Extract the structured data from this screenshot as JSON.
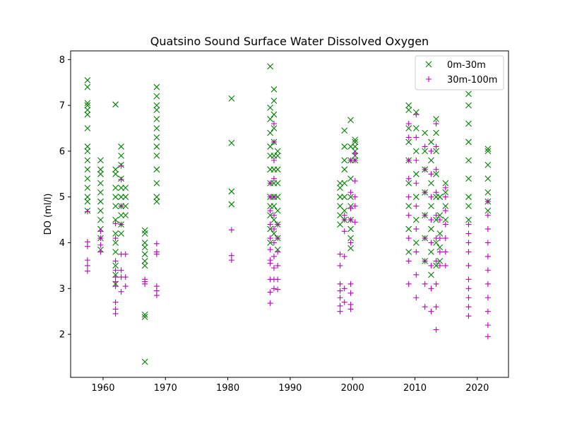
{
  "chart_data": {
    "type": "scatter",
    "title": "Quatsino Sound Surface Water Dissolved Oxygen",
    "xlabel": "",
    "ylabel": "DO (ml/l)",
    "xlim": [
      1954.8,
      2025.0
    ],
    "ylim": [
      1.06,
      8.19
    ],
    "xticks": [
      1960,
      1970,
      1980,
      1990,
      2000,
      2010,
      2020
    ],
    "yticks": [
      2,
      3,
      4,
      5,
      6,
      7,
      8
    ],
    "grid": false,
    "legend_position": "top-right",
    "series": [
      {
        "name": "0m-30m",
        "marker": "x",
        "color": "#008000",
        "columns": [
          {
            "x": 1957.5,
            "y": [
              4.7,
              4.9,
              5.0,
              5.2,
              5.4,
              5.6,
              5.8,
              6.0,
              6.1,
              6.5,
              6.8,
              6.9,
              7.0,
              7.05,
              7.4,
              7.55
            ]
          },
          {
            "x": 1959.6,
            "y": [
              3.85,
              4.1,
              4.3,
              4.5,
              4.7,
              4.9,
              5.1,
              5.3,
              5.5,
              5.6,
              5.8
            ]
          },
          {
            "x": 1962.0,
            "y": [
              3.1,
              3.3,
              3.5,
              3.8,
              4.0,
              4.2,
              4.5,
              4.8,
              5.0,
              5.2,
              5.5,
              5.6,
              7.02
            ]
          },
          {
            "x": 1962.9,
            "y": [
              4.2,
              4.4,
              4.6,
              4.8,
              5.0,
              5.2,
              5.4,
              5.7,
              5.9,
              6.1
            ]
          },
          {
            "x": 1963.6,
            "y": [
              4.6,
              4.8,
              5.0,
              5.2
            ]
          },
          {
            "x": 1966.7,
            "y": [
              1.4,
              2.38,
              2.43,
              3.5,
              3.6,
              3.75,
              3.9,
              4.0,
              4.2,
              4.27
            ]
          },
          {
            "x": 1968.6,
            "y": [
              4.9,
              5.0,
              5.3,
              5.6,
              5.9,
              6.1,
              6.3,
              6.5,
              6.7,
              6.9,
              7.0,
              7.2,
              7.4
            ]
          },
          {
            "x": 1980.6,
            "y": [
              4.84,
              5.12,
              6.18,
              7.15
            ]
          },
          {
            "x": 1986.8,
            "y": [
              4.0,
              4.3,
              4.6,
              4.8,
              5.0,
              5.3,
              5.6,
              5.9,
              6.1,
              6.4,
              6.7,
              6.95,
              7.85
            ]
          },
          {
            "x": 1987.4,
            "y": [
              4.2,
              4.5,
              4.8,
              5.0,
              5.3,
              5.6,
              5.9,
              6.2,
              6.5,
              6.8,
              7.1,
              7.35
            ]
          },
          {
            "x": 1988.0,
            "y": [
              3.85,
              4.1,
              4.4,
              4.7,
              5.0,
              5.3,
              5.6,
              5.9,
              6.0
            ]
          },
          {
            "x": 1998.0,
            "y": [
              4.4,
              4.6,
              4.8,
              5.0,
              5.2,
              5.3
            ]
          },
          {
            "x": 1998.7,
            "y": [
              4.5,
              4.7,
              5.0,
              5.3,
              5.6,
              5.8,
              6.1,
              6.45
            ]
          },
          {
            "x": 1999.7,
            "y": [
              3.88,
              4.1,
              4.3,
              4.5,
              4.8,
              5.0,
              5.4,
              5.8,
              6.1,
              6.68
            ]
          },
          {
            "x": 2000.4,
            "y": [
              5.8,
              5.9,
              6.0,
              6.1,
              6.2,
              6.25
            ]
          },
          {
            "x": 2009.0,
            "y": [
              3.8,
              4.3,
              4.8,
              5.3,
              5.8,
              6.2,
              6.5,
              6.9,
              7.0
            ]
          },
          {
            "x": 2010.2,
            "y": [
              4.0,
              4.5,
              5.0,
              5.5,
              6.0,
              6.5,
              6.85
            ]
          },
          {
            "x": 2011.6,
            "y": [
              3.6,
              4.1,
              4.6,
              5.1,
              5.6,
              6.0,
              6.4
            ]
          },
          {
            "x": 2012.6,
            "y": [
              3.3,
              3.8,
              4.3,
              4.8,
              5.3,
              5.8,
              6.2
            ]
          },
          {
            "x": 2013.4,
            "y": [
              3.5,
              4.0,
              4.5,
              5.0,
              5.5,
              6.0,
              6.4,
              6.7
            ]
          },
          {
            "x": 2014.0,
            "y": [
              3.6,
              3.9,
              4.2,
              4.6,
              5.0
            ]
          },
          {
            "x": 2014.9,
            "y": [
              4.5,
              4.8,
              5.1,
              5.3
            ]
          },
          {
            "x": 2018.6,
            "y": [
              4.5,
              4.8,
              5.0,
              5.4,
              5.8,
              6.2,
              6.6,
              7.0,
              7.25
            ]
          },
          {
            "x": 2021.7,
            "y": [
              4.7,
              4.9,
              5.1,
              5.4,
              5.7,
              6.0,
              6.05
            ]
          }
        ]
      },
      {
        "name": "30m-100m",
        "marker": "+",
        "color": "#bf00bf",
        "columns": [
          {
            "x": 1957.5,
            "y": [
              3.38,
              3.5,
              3.62,
              3.92,
              4.02,
              4.68
            ]
          },
          {
            "x": 1959.6,
            "y": [
              3.8,
              3.95,
              4.1,
              4.25
            ]
          },
          {
            "x": 1962.0,
            "y": [
              2.45,
              2.55,
              2.7,
              3.05,
              3.15,
              3.25,
              3.4,
              3.6,
              4.1,
              4.42
            ]
          },
          {
            "x": 1962.9,
            "y": [
              2.93,
              3.25,
              3.4,
              3.75,
              4.4,
              4.8,
              5.38,
              5.68
            ]
          },
          {
            "x": 1963.6,
            "y": [
              3.05,
              3.25,
              3.75
            ]
          },
          {
            "x": 1966.7,
            "y": [
              3.1,
              3.15,
              3.2
            ]
          },
          {
            "x": 1968.6,
            "y": [
              2.85,
              2.95,
              3.05,
              3.75,
              3.8,
              3.98
            ]
          },
          {
            "x": 1980.6,
            "y": [
              3.62,
              3.72,
              4.28
            ]
          },
          {
            "x": 1986.8,
            "y": [
              2.68,
              2.92,
              3.2,
              3.55,
              3.62,
              3.85,
              4.1,
              4.4,
              4.7,
              5.0,
              5.3
            ]
          },
          {
            "x": 1987.4,
            "y": [
              3.0,
              3.2,
              3.45,
              3.7,
              4.0,
              4.3,
              4.6,
              5.0,
              5.4,
              5.8,
              6.2,
              6.6
            ]
          },
          {
            "x": 1988.0,
            "y": [
              2.98,
              3.2,
              3.5,
              3.8,
              4.1,
              4.4
            ]
          },
          {
            "x": 1998.0,
            "y": [
              2.5,
              2.62,
              2.8,
              2.95,
              3.1,
              3.5,
              3.75
            ]
          },
          {
            "x": 1998.7,
            "y": [
              2.7,
              3.0,
              3.7,
              4.25,
              4.5,
              4.6
            ]
          },
          {
            "x": 1999.7,
            "y": [
              2.55,
              2.65,
              2.9,
              3.1,
              4.0,
              4.5,
              4.75,
              5.1,
              5.8
            ]
          },
          {
            "x": 2000.4,
            "y": [
              4.45,
              4.8,
              5.0,
              5.35,
              5.8,
              5.95
            ]
          },
          {
            "x": 2009.0,
            "y": [
              3.1,
              3.6,
              4.1,
              4.6,
              5.0,
              5.4,
              5.8,
              6.3,
              6.6
            ]
          },
          {
            "x": 2010.2,
            "y": [
              2.8,
              3.3,
              3.8,
              4.3,
              4.8,
              5.3,
              5.8,
              6.3,
              6.8
            ]
          },
          {
            "x": 2011.6,
            "y": [
              2.6,
              3.1,
              3.6,
              4.1,
              4.6,
              5.1,
              5.6,
              6.1
            ]
          },
          {
            "x": 2012.6,
            "y": [
              2.5,
              3.0,
              3.5,
              4.0,
              4.5,
              5.0,
              5.5,
              6.0
            ]
          },
          {
            "x": 2013.4,
            "y": [
              2.1,
              2.6,
              3.1,
              3.6,
              4.1,
              4.6,
              5.1,
              5.6,
              6.1,
              6.6
            ]
          },
          {
            "x": 2014.0,
            "y": [
              3.5,
              3.8,
              4.1,
              4.5
            ]
          },
          {
            "x": 2014.9,
            "y": [
              3.5,
              3.8,
              4.1,
              4.4,
              4.7,
              5.0,
              5.2
            ]
          },
          {
            "x": 2018.6,
            "y": [
              2.4,
              2.6,
              2.8,
              3.0,
              3.2,
              3.5,
              3.8,
              4.0,
              4.2,
              4.4
            ]
          },
          {
            "x": 2021.7,
            "y": [
              1.95,
              2.2,
              2.5,
              2.8,
              3.1,
              3.4,
              3.7,
              4.0,
              4.3,
              4.6,
              4.9
            ]
          }
        ]
      }
    ]
  }
}
